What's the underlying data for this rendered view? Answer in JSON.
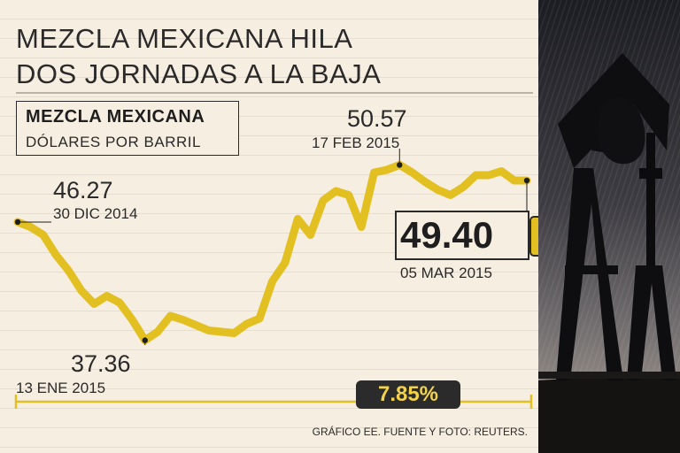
{
  "headline": {
    "line1": "MEZCLA MEXICANA HILA",
    "line2": "DOS JORNADAS A LA BAJA"
  },
  "series_label": {
    "name": "MEZCLA MEXICANA",
    "unit": "DÓLARES POR BARRIL"
  },
  "source": "GRÁFICO EE. FUENTE Y FOTO: REUTERS.",
  "change_badge": "7.85%",
  "colors": {
    "line": "#e3c021",
    "text": "#2a2a2a",
    "background": "#f7eee2",
    "badge_background": "#2b2b2b",
    "badge_text": "#f2d24a"
  },
  "chart_data": {
    "type": "line",
    "title": "",
    "xlabel": "",
    "ylabel": "",
    "ylim": [
      35,
      53
    ],
    "grid": false,
    "series": [
      {
        "values": [
          46.27,
          45.9,
          45.3,
          43.8,
          42.6,
          41.1,
          40.1,
          40.7,
          40.2,
          38.9,
          37.36,
          38.0,
          39.2,
          38.9,
          38.5,
          38.1,
          38.0,
          37.9,
          38.6,
          39.0,
          41.8,
          43.2,
          46.5,
          45.3,
          47.9,
          48.6,
          48.3,
          45.9,
          50.0,
          50.2,
          50.57,
          50.0,
          49.3,
          48.7,
          48.3,
          48.9,
          49.8,
          49.8,
          50.1,
          49.4,
          49.4
        ]
      }
    ],
    "annotations": [
      {
        "value": "46.27",
        "date": "30 DIC 2014",
        "point_index": 0
      },
      {
        "value": "37.36",
        "date": "13 ENE 2015",
        "point_index": 10
      },
      {
        "value": "50.57",
        "date": "17 FEB 2015",
        "point_index": 30
      },
      {
        "value": "49.40",
        "date": "05 MAR 2015",
        "point_index": 40
      }
    ]
  },
  "icons": {
    "trend": "arrow-down-right-icon",
    "photo": "oil-pumpjack-photo"
  }
}
